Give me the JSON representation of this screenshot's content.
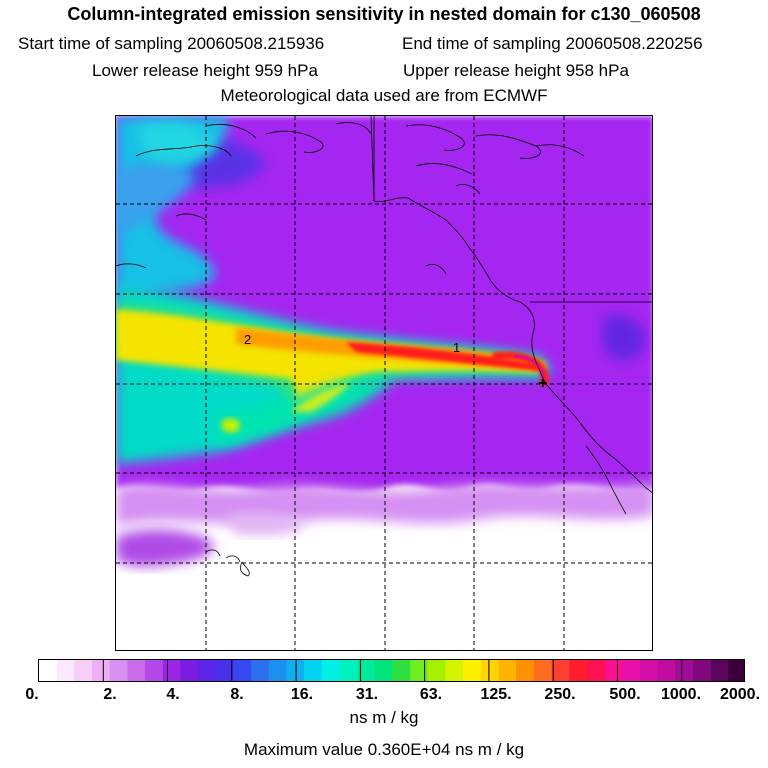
{
  "header": {
    "title": "Column-integrated emission sensitivity in nested domain for c130_060508",
    "start_label": "Start time of sampling",
    "start_value": "20060508.215936",
    "end_label": "End time of sampling",
    "end_value": "20060508.220256",
    "lower_label": "Lower release height",
    "lower_value": "959 hPa",
    "upper_label": "Upper release height",
    "upper_value": "958 hPa",
    "met_line": "Meteorological data used are from ECMWF"
  },
  "map": {
    "plume_labels": [
      "2",
      "1"
    ],
    "release_marker": "+",
    "colors": {
      "background_purple": "#a526f0",
      "plume_core": "#ff2020",
      "plume_mid": "#ffd200",
      "plume_outer": "#00e0c8",
      "ocean_cyan": "#16c8e6",
      "low_region": "#ffffff"
    }
  },
  "colorbar": {
    "tick_labels": [
      "0.",
      "2.",
      "4.",
      "8.",
      "16.",
      "31.",
      "63.",
      "125.",
      "250.",
      "500.",
      "1000.",
      "2000."
    ],
    "colors": [
      "#ffffff",
      "#fce8fc",
      "#f6cef8",
      "#eeb0f4",
      "#d890f0",
      "#c86cec",
      "#b448e8",
      "#9c24e4",
      "#7c1ce0",
      "#5c24e8",
      "#4830ec",
      "#3848f0",
      "#2c70f0",
      "#1c90f0",
      "#10b0f0",
      "#00d4f0",
      "#00f0e8",
      "#00f0c0",
      "#00ec9c",
      "#00e47c",
      "#30e040",
      "#70ec20",
      "#a4f000",
      "#d4f400",
      "#fff000",
      "#ffd400",
      "#ffb400",
      "#ff9000",
      "#ff6c20",
      "#ff4030",
      "#ff1c2c",
      "#ff1050",
      "#f8108c",
      "#e810a8",
      "#d40ca8",
      "#c00ca0",
      "#a00c98",
      "#80087c",
      "#5c045c",
      "#3c0038"
    ],
    "units": "ns m / kg",
    "max_label": "Maximum value",
    "max_value": "0.360E+04 ns m / kg"
  }
}
